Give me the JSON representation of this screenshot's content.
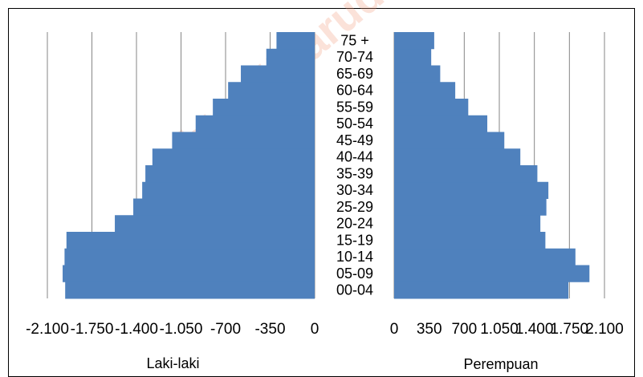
{
  "chart_data": {
    "type": "bar",
    "orientation": "horizontal",
    "categories": [
      "00-04",
      "05-09",
      "10-14",
      "15-19",
      "20-24",
      "25-29",
      "30-34",
      "35-39",
      "40-44",
      "45-49",
      "50-54",
      "55-59",
      "60-64",
      "65-69",
      "70-74",
      "75 +"
    ],
    "category_labels": [
      "00-04",
      "05-09",
      "10-14",
      "15-19",
      "20-24",
      "25-29",
      "30-34",
      "35-39",
      "40-44",
      "45-49",
      "50-54",
      "55-59",
      "60-64",
      "65-69",
      "70-74",
      "75 +"
    ],
    "series": [
      {
        "name": "Laki-laki",
        "values": [
          1960,
          1980,
          1965,
          1950,
          1570,
          1425,
          1355,
          1330,
          1275,
          1120,
          935,
          800,
          680,
          580,
          380,
          300
        ],
        "xlabel": "Laki-laki",
        "xticks": [
          "-2.100",
          "-1.750",
          "-1.400",
          "-1.050",
          "-700",
          "-350",
          "0"
        ],
        "xlim": [
          -2100,
          0
        ]
      },
      {
        "name": "Perempuan",
        "values": [
          1740,
          1950,
          1810,
          1510,
          1460,
          1520,
          1540,
          1430,
          1260,
          1100,
          930,
          740,
          610,
          460,
          370,
          400
        ],
        "xlabel": "Perempuan",
        "xticks": [
          "0",
          "350",
          "700",
          "1.050",
          "1.400",
          "1.750",
          "2.100"
        ],
        "xlim": [
          0,
          2100
        ]
      }
    ],
    "grid": true,
    "bar_color": "#4f81bd",
    "grid_color": "#868686"
  },
  "watermark": "http://garudalab.com"
}
